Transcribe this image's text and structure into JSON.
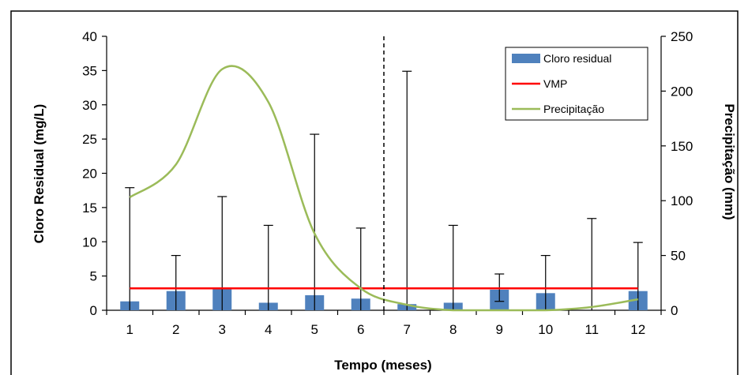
{
  "chart_data": {
    "type": "bar",
    "categories": [
      "1",
      "2",
      "3",
      "4",
      "5",
      "6",
      "7",
      "8",
      "9",
      "10",
      "11",
      "12"
    ],
    "xlabel": "Tempo (meses)",
    "ylabel_left": "Cloro Residual (mg/L)",
    "ylabel_right": "Precipitação (mm)",
    "ylim_left": [
      0,
      40
    ],
    "ylim_right": [
      0,
      250
    ],
    "yticks_left": [
      "0",
      "5",
      "10",
      "15",
      "20",
      "25",
      "30",
      "35",
      "40"
    ],
    "yticks_right": [
      "0",
      "50",
      "100",
      "150",
      "200",
      "250"
    ],
    "divider_after_category": 6,
    "legend_position": "top-right",
    "series": [
      {
        "name": "Cloro residual",
        "kind": "bar",
        "axis": "left",
        "color": "#4f81bd",
        "values": [
          1.3,
          2.8,
          3.3,
          1.1,
          2.2,
          1.7,
          0.9,
          1.1,
          3.0,
          2.5,
          0.0,
          2.8
        ],
        "error_upper": [
          17.9,
          8.0,
          16.6,
          12.4,
          25.7,
          12.0,
          34.9,
          12.4,
          5.3,
          8.0,
          13.4,
          9.9
        ]
      },
      {
        "name": "VMP",
        "kind": "line",
        "axis": "left",
        "color": "#ff0000",
        "values": [
          3.2,
          3.2,
          3.2,
          3.2,
          3.2,
          3.2,
          3.2,
          3.2,
          3.2,
          3.2,
          3.2,
          3.2
        ]
      },
      {
        "name": "Precipitação",
        "kind": "line",
        "axis": "right",
        "color": "#9bbb59",
        "values": [
          103,
          133,
          220,
          190,
          70,
          20,
          5,
          0,
          0,
          0,
          3,
          10
        ]
      }
    ]
  }
}
